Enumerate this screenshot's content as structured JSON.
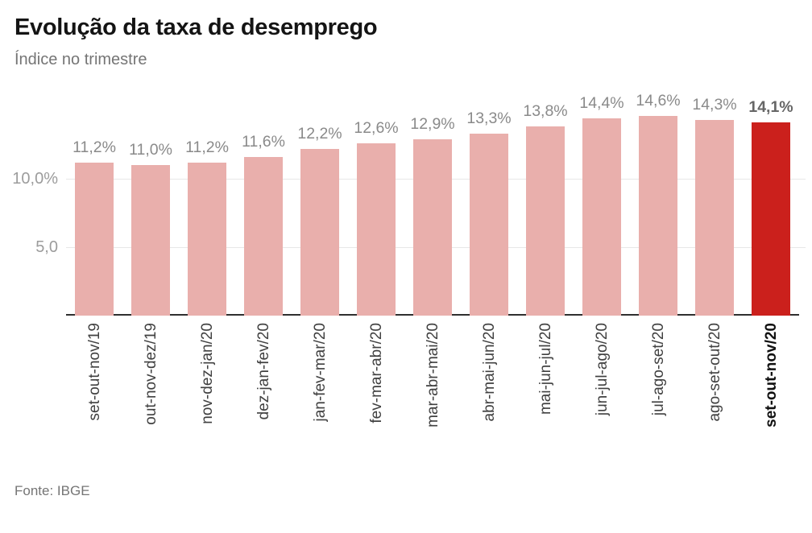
{
  "header": {
    "title": "Evolução da taxa de desemprego",
    "subtitle": "Índice no trimestre"
  },
  "footer": {
    "source": "Fonte: IBGE"
  },
  "chart_data": {
    "type": "bar",
    "title": "Evolução da taxa de desemprego",
    "subtitle": "Índice no trimestre",
    "categories": [
      "set-out-nov/19",
      "out-nov-dez/19",
      "nov-dez-jan/20",
      "dez-jan-fev/20",
      "jan-fev-mar/20",
      "fev-mar-abr/20",
      "mar-abr-mai/20",
      "abr-mai-jun/20",
      "mai-jun-jul/20",
      "jun-jul-ago/20",
      "jul-ago-set/20",
      "ago-set-out/20",
      "set-out-nov/20"
    ],
    "values": [
      11.2,
      11.0,
      11.2,
      11.6,
      12.2,
      12.6,
      12.9,
      13.3,
      13.8,
      14.4,
      14.6,
      14.3,
      14.1
    ],
    "value_labels": [
      "11,2%",
      "11,0%",
      "11,2%",
      "11,6%",
      "12,2%",
      "12,6%",
      "12,9%",
      "13,3%",
      "13,8%",
      "14,4%",
      "14,6%",
      "14,3%",
      "14,1%"
    ],
    "highlight_index": 12,
    "xlabel": "",
    "ylabel": "",
    "ylim": [
      0,
      15.8
    ],
    "grid": "horizontal",
    "legend": "none",
    "yticks": [
      {
        "value": 10.0,
        "label": "10,0%"
      },
      {
        "value": 5.0,
        "label": "5,0"
      }
    ],
    "colors": {
      "bar": "#e9afac",
      "bar_highlight": "#cb201c",
      "grid": "#e7e7e7",
      "axis": "#2f2f2f",
      "value_label": "#8a8a8a",
      "value_label_highlight": "#666666",
      "tick_label": "#9c9c9c",
      "x_label": "#404040",
      "x_label_highlight": "#111111"
    }
  }
}
